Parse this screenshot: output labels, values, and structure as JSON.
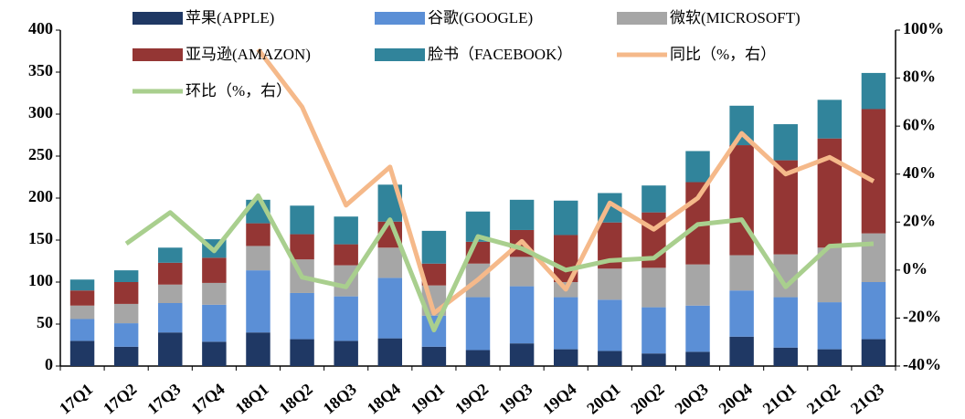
{
  "chart_data": {
    "type": "bar",
    "categories": [
      "17Q1",
      "17Q2",
      "17Q3",
      "17Q4",
      "18Q1",
      "18Q2",
      "18Q3",
      "18Q4",
      "19Q1",
      "19Q2",
      "19Q3",
      "19Q4",
      "20Q1",
      "20Q2",
      "20Q3",
      "20Q4",
      "21Q1",
      "21Q2",
      "21Q3"
    ],
    "series": [
      {
        "name": "苹果(APPLE)",
        "color": "#1f3864",
        "values": [
          30,
          23,
          40,
          29,
          40,
          32,
          30,
          33,
          23,
          19,
          27,
          20,
          18,
          15,
          17,
          35,
          22,
          20,
          32
        ]
      },
      {
        "name": "谷歌(GOOGLE)",
        "color": "#5b8fd6",
        "values": [
          26,
          28,
          35,
          44,
          74,
          55,
          53,
          72,
          37,
          63,
          68,
          62,
          61,
          55,
          55,
          55,
          60,
          56,
          68
        ]
      },
      {
        "name": "微软(MICROSOFT)",
        "color": "#a6a6a6",
        "values": [
          16,
          23,
          22,
          26,
          29,
          40,
          37,
          36,
          36,
          40,
          35,
          18,
          37,
          47,
          49,
          42,
          51,
          65,
          58
        ]
      },
      {
        "name": "亚马逊(AMAZON)",
        "color": "#943634",
        "values": [
          18,
          26,
          26,
          30,
          27,
          30,
          25,
          31,
          26,
          26,
          32,
          56,
          55,
          66,
          98,
          131,
          112,
          130,
          148
        ]
      },
      {
        "name": "脸书（FACEBOOK）",
        "color": "#31849b",
        "values": [
          13,
          14,
          18,
          22,
          28,
          34,
          33,
          44,
          39,
          36,
          36,
          41,
          35,
          32,
          37,
          47,
          43,
          46,
          43
        ]
      },
      {
        "name": "同比（%，右）",
        "color": "#f5b98a",
        "axis": "y2",
        "type": "line",
        "values": [
          null,
          null,
          null,
          null,
          92,
          68,
          27,
          43,
          -18,
          -4,
          12,
          -8,
          28,
          17,
          30,
          57,
          40,
          47,
          37
        ]
      },
      {
        "name": "环比（%，右）",
        "color": "#a9cf8e",
        "axis": "y2",
        "type": "line",
        "values": [
          null,
          11,
          24,
          8,
          31,
          -3,
          -7,
          21,
          -25,
          14,
          9,
          0,
          4,
          5,
          19,
          21,
          -7,
          10,
          11
        ]
      }
    ],
    "stacked": true,
    "ylim": [
      0,
      400
    ],
    "yticks": [
      0,
      50,
      100,
      150,
      200,
      250,
      300,
      350,
      400
    ],
    "y2lim": [
      -40,
      100
    ],
    "y2ticks": [
      {
        "value": -40,
        "label": "-40%"
      },
      {
        "value": -20,
        "label": "-20%"
      },
      {
        "value": 0,
        "label": "0%"
      },
      {
        "value": 20,
        "label": "20%"
      },
      {
        "value": 40,
        "label": "40%"
      },
      {
        "value": 60,
        "label": "60%"
      },
      {
        "value": 80,
        "label": "80%"
      },
      {
        "value": 100,
        "label": "100%"
      }
    ]
  }
}
